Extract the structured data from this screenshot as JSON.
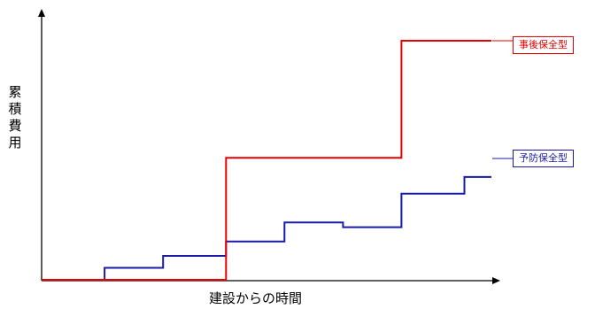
{
  "chart_data": {
    "type": "line",
    "step": true,
    "xlabel": "建設からの時間",
    "ylabel": "累積費用",
    "xlim": [
      0,
      100
    ],
    "ylim": [
      0,
      100
    ],
    "grid": false,
    "series": [
      {
        "name": "事後保全型",
        "color": "#e60000",
        "x": [
          0,
          41,
          41,
          80,
          80,
          100
        ],
        "y": [
          0,
          0,
          51,
          51,
          100,
          100
        ]
      },
      {
        "name": "予防保全型",
        "color": "#1a1aa6",
        "x": [
          0,
          14,
          14,
          27,
          27,
          41,
          41,
          54,
          54,
          67,
          67,
          80,
          80,
          94,
          94,
          100
        ],
        "y": [
          0,
          0,
          5,
          5,
          10,
          10,
          16,
          16,
          24,
          24,
          22,
          22,
          36,
          36,
          43,
          43
        ]
      }
    ]
  }
}
